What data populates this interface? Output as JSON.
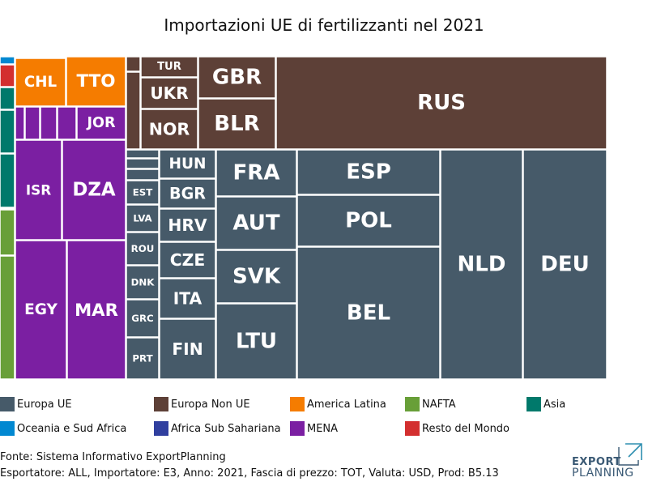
{
  "chart_data": {
    "type": "treemap",
    "title": "Importazioni UE di fertilizzanti nel 2021",
    "legend": [
      {
        "name": "Europa UE",
        "color": "#465a69"
      },
      {
        "name": "Europa Non UE",
        "color": "#5d4037"
      },
      {
        "name": "America Latina",
        "color": "#f57c00"
      },
      {
        "name": "NAFTA",
        "color": "#689f38"
      },
      {
        "name": "Asia",
        "color": "#00796b"
      },
      {
        "name": "Oceania e Sud Africa",
        "color": "#0288d1"
      },
      {
        "name": "Africa Sub Sahariana",
        "color": "#303f9f"
      },
      {
        "name": "MENA",
        "color": "#7b1fa2"
      },
      {
        "name": "Resto del Mondo",
        "color": "#d32f2f"
      }
    ],
    "cells": [
      {
        "label": "",
        "group": "Oceania e Sud Africa"
      },
      {
        "label": "",
        "group": "Resto del Mondo"
      },
      {
        "label": "",
        "group": "Asia"
      },
      {
        "label": "",
        "group": "Asia"
      },
      {
        "label": "",
        "group": "Asia"
      },
      {
        "label": "",
        "group": "NAFTA"
      },
      {
        "label": "",
        "group": "NAFTA"
      },
      {
        "label": "CHL",
        "group": "America Latina"
      },
      {
        "label": "TTO",
        "group": "America Latina"
      },
      {
        "label": "",
        "group": "MENA"
      },
      {
        "label": "",
        "group": "MENA"
      },
      {
        "label": "",
        "group": "MENA"
      },
      {
        "label": "",
        "group": "MENA"
      },
      {
        "label": "JOR",
        "group": "MENA"
      },
      {
        "label": "ISR",
        "group": "MENA"
      },
      {
        "label": "DZA",
        "group": "MENA"
      },
      {
        "label": "EGY",
        "group": "MENA"
      },
      {
        "label": "MAR",
        "group": "MENA"
      },
      {
        "label": "",
        "group": "Europa Non UE"
      },
      {
        "label": "",
        "group": "Europa Non UE"
      },
      {
        "label": "TUR",
        "group": "Europa Non UE"
      },
      {
        "label": "UKR",
        "group": "Europa Non UE"
      },
      {
        "label": "NOR",
        "group": "Europa Non UE"
      },
      {
        "label": "GBR",
        "group": "Europa Non UE"
      },
      {
        "label": "BLR",
        "group": "Europa Non UE"
      },
      {
        "label": "RUS",
        "group": "Europa Non UE"
      },
      {
        "label": "",
        "group": "Europa UE"
      },
      {
        "label": "",
        "group": "Europa UE"
      },
      {
        "label": "",
        "group": "Europa UE"
      },
      {
        "label": "EST",
        "group": "Europa UE"
      },
      {
        "label": "LVA",
        "group": "Europa UE"
      },
      {
        "label": "ROU",
        "group": "Europa UE"
      },
      {
        "label": "DNK",
        "group": "Europa UE"
      },
      {
        "label": "GRC",
        "group": "Europa UE"
      },
      {
        "label": "PRT",
        "group": "Europa UE"
      },
      {
        "label": "HUN",
        "group": "Europa UE"
      },
      {
        "label": "BGR",
        "group": "Europa UE"
      },
      {
        "label": "HRV",
        "group": "Europa UE"
      },
      {
        "label": "CZE",
        "group": "Europa UE"
      },
      {
        "label": "ITA",
        "group": "Europa UE"
      },
      {
        "label": "FIN",
        "group": "Europa UE"
      },
      {
        "label": "FRA",
        "group": "Europa UE"
      },
      {
        "label": "AUT",
        "group": "Europa UE"
      },
      {
        "label": "SVK",
        "group": "Europa UE"
      },
      {
        "label": "LTU",
        "group": "Europa UE"
      },
      {
        "label": "ESP",
        "group": "Europa UE"
      },
      {
        "label": "POL",
        "group": "Europa UE"
      },
      {
        "label": "BEL",
        "group": "Europa UE"
      },
      {
        "label": "NLD",
        "group": "Europa UE"
      },
      {
        "label": "DEU",
        "group": "Europa UE"
      }
    ]
  },
  "footer": {
    "source": "Fonte: Sistema Informativo ExportPlanning",
    "filters": "Esportatore: ALL, Importatore: E3, Anno: 2021, Fascia di prezzo: TOT, Valuta: USD, Prod: B5.13"
  },
  "logo": {
    "line1": "EXPORT",
    "line2": "PLANNING",
    "color": "#3b5a75",
    "accent": "#2f8fb0"
  }
}
